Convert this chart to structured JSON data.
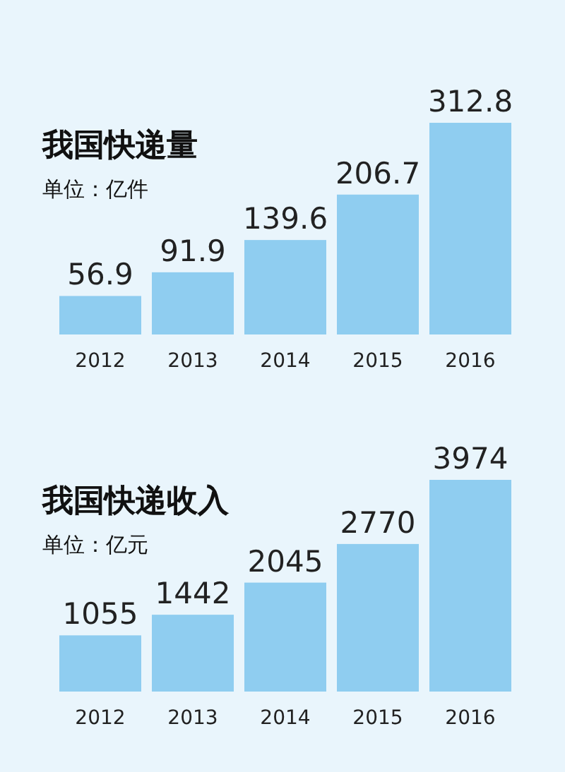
{
  "chart_data": [
    {
      "type": "bar",
      "title": "我国快递量",
      "subtitle": "单位：亿件",
      "categories": [
        "2012",
        "2013",
        "2014",
        "2015",
        "2016"
      ],
      "values": [
        56.9,
        91.9,
        139.6,
        206.7,
        312.8
      ],
      "color": "#8fcdf0",
      "data_labels": true
    },
    {
      "type": "bar",
      "title": "我国快递收入",
      "subtitle": "单位：亿元",
      "categories": [
        "2012",
        "2013",
        "2014",
        "2015",
        "2016"
      ],
      "values": [
        1055,
        1442,
        2045,
        2770,
        3974
      ],
      "color": "#8fcdf0",
      "data_labels": true
    }
  ]
}
